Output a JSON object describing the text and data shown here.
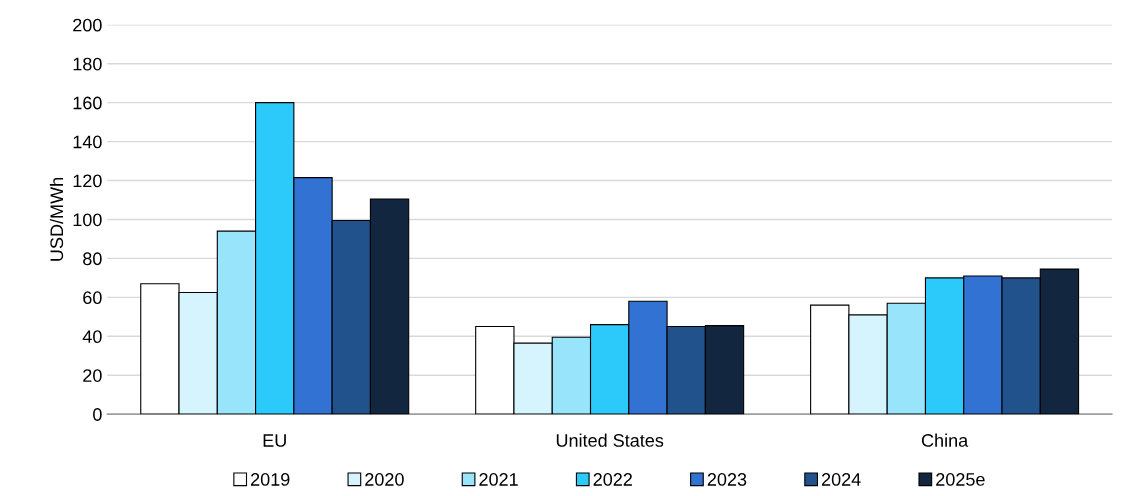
{
  "chart_data": {
    "type": "bar",
    "ylabel": "USD/MWh",
    "categories": [
      "EU",
      "United States",
      "China"
    ],
    "series": [
      {
        "name": "2019",
        "color": "#ffffff",
        "values": [
          67,
          45,
          56
        ]
      },
      {
        "name": "2020",
        "color": "#d5f4fd",
        "values": [
          62.5,
          36.5,
          51
        ]
      },
      {
        "name": "2021",
        "color": "#98e4fb",
        "values": [
          94,
          39.5,
          57
        ]
      },
      {
        "name": "2022",
        "color": "#2bcafb",
        "values": [
          160,
          46,
          70
        ]
      },
      {
        "name": "2023",
        "color": "#3172d3",
        "values": [
          121.5,
          58,
          71
        ]
      },
      {
        "name": "2024",
        "color": "#22528c",
        "values": [
          99.5,
          45,
          70
        ]
      },
      {
        "name": "2025e",
        "color": "#12263f",
        "values": [
          110.5,
          45.5,
          74.5
        ]
      }
    ],
    "ylim": [
      0,
      200
    ],
    "yticks": [
      0,
      20,
      40,
      60,
      80,
      100,
      120,
      140,
      160,
      180,
      200
    ],
    "grid": "y",
    "legend": "bottom"
  }
}
